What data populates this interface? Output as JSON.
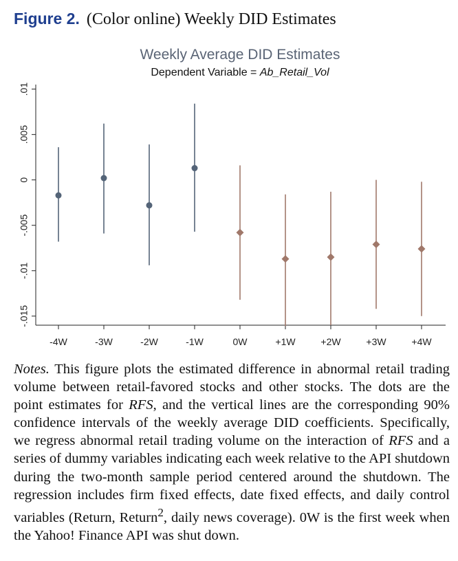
{
  "caption": {
    "figure_label": "Figure 2.",
    "title": "(Color online) Weekly DID Estimates"
  },
  "chart_data": {
    "type": "scatter",
    "title": "Weekly Average DID Estimates",
    "subtitle_prefix": "Dependent Variable = ",
    "subtitle_var": "Ab_Retail_Vol",
    "categories": [
      "-4W",
      "-3W",
      "-2W",
      "-1W",
      "0W",
      "+1W",
      "+2W",
      "+3W",
      "+4W"
    ],
    "ylim": [
      -0.016,
      0.0105
    ],
    "yticks": [
      0.01,
      0.005,
      0,
      -0.005,
      -0.01,
      -0.015
    ],
    "ytick_labels": [
      ".01",
      ".005",
      "0",
      "-.005",
      "-.01",
      "-.015"
    ],
    "grid": false,
    "series": [
      {
        "marker": "circle",
        "color": "#546478",
        "points": [
          {
            "x": "-4W",
            "y": -0.0017,
            "lo": -0.0068,
            "hi": 0.0036
          },
          {
            "x": "-3W",
            "y": 0.0002,
            "lo": -0.0059,
            "hi": 0.0062
          },
          {
            "x": "-2W",
            "y": -0.0028,
            "lo": -0.0094,
            "hi": 0.0039
          },
          {
            "x": "-1W",
            "y": 0.0013,
            "lo": -0.0057,
            "hi": 0.0084
          }
        ]
      },
      {
        "marker": "diamond",
        "color": "#a0786a",
        "points": [
          {
            "x": "0W",
            "y": -0.0058,
            "lo": -0.0132,
            "hi": 0.0016
          },
          {
            "x": "+1W",
            "y": -0.0087,
            "lo": -0.0161,
            "hi": -0.0016
          },
          {
            "x": "+2W",
            "y": -0.0085,
            "lo": -0.016,
            "hi": -0.0013
          },
          {
            "x": "+3W",
            "y": -0.0071,
            "lo": -0.0142,
            "hi": 0.0
          },
          {
            "x": "+4W",
            "y": -0.0076,
            "lo": -0.015,
            "hi": -0.0002
          }
        ]
      }
    ]
  },
  "notes": {
    "label": "Notes.",
    "part1": " This figure plots the estimated difference in abnormal retail trading volume between retail-favored stocks and other stocks. The dots are the point estimates for ",
    "rfs1": "RFS",
    "part2": ", and the vertical lines are the corresponding 90% confidence intervals of the weekly average DID coefficients. Specifically, we regress abnormal retail trading volume on the interaction of ",
    "rfs2": "RFS",
    "part3": " and a series of dummy variables indicating each week relative to the API shutdown during the two-month sample period centered around the shutdown. The regression includes firm fixed effects, date fixed effects, and daily control variables (Return, Return",
    "sup": "2",
    "part4": ", daily news coverage). 0W is the first week when the Yahoo! Finance API was shut down."
  }
}
